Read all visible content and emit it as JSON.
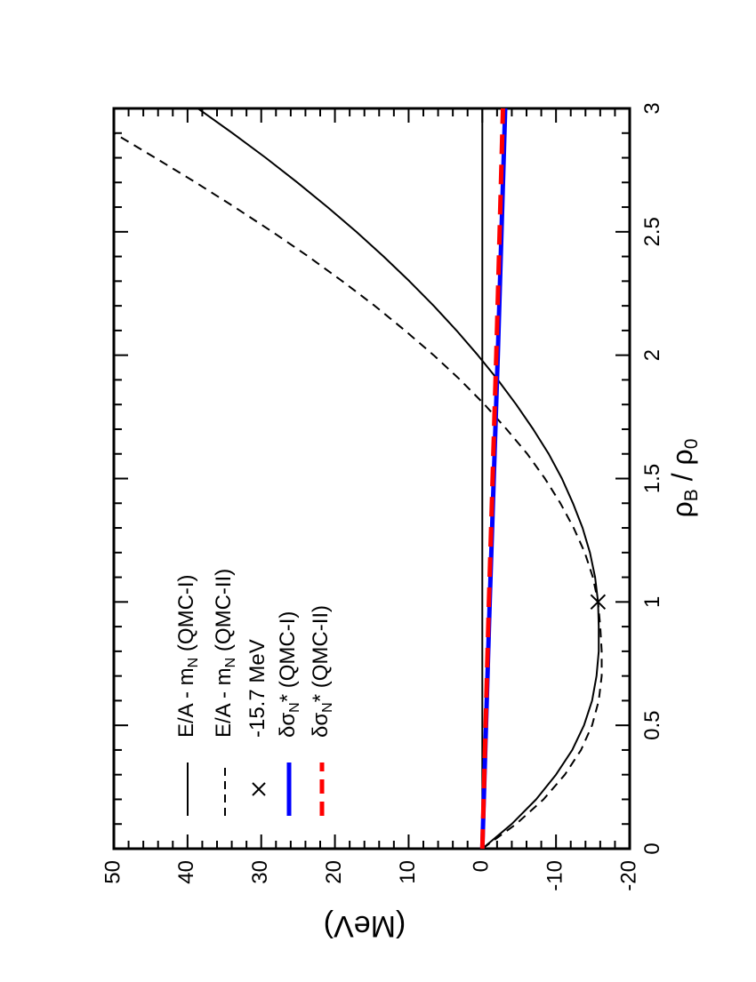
{
  "chart_data": {
    "type": "line",
    "xlabel": "ρB / ρ0",
    "xlabel_parts": {
      "rho": "ρ",
      "sub1": "B",
      "mid": " / ρ",
      "sub2": "0"
    },
    "ylabel": "(MeV)",
    "xlim": [
      0,
      3
    ],
    "ylim": [
      -20,
      50
    ],
    "x_ticks": [
      "0",
      "0.5",
      "1",
      "1.5",
      "2",
      "2.5",
      "3"
    ],
    "y_ticks": [
      "-20",
      "-10",
      "0",
      "10",
      "20",
      "30",
      "40",
      "50"
    ],
    "x_tick_values": [
      0,
      0.5,
      1,
      1.5,
      2,
      2.5,
      3
    ],
    "y_tick_values": [
      -20,
      -10,
      0,
      10,
      20,
      30,
      40,
      50
    ],
    "orientation": "rotated 90 degrees counter-clockwise",
    "zero_line": true,
    "legend_position": "top-left",
    "legend": [
      {
        "label": "E/A - m",
        "sub": "N",
        "suffix": " (QMC-I)",
        "style": "solid",
        "color": "#000000"
      },
      {
        "label": "E/A - m",
        "sub": "N",
        "suffix": " (QMC-II)",
        "style": "dashed",
        "color": "#000000"
      },
      {
        "label": "-15.7 MeV",
        "sub": "",
        "suffix": "",
        "style": "marker-x",
        "color": "#000000"
      },
      {
        "label": "δσ",
        "sub": "N",
        "suffix": "* (QMC-I)",
        "style": "solid-thick",
        "color": "#0000ff"
      },
      {
        "label": "δσ",
        "sub": "N",
        "suffix": "* (QMC-II)",
        "style": "dashed-thick",
        "color": "#ff0000"
      }
    ],
    "series": [
      {
        "name": "E/A - mN (QMC-I)",
        "style": "solid",
        "color": "#000000",
        "x": [
          0,
          0.1,
          0.2,
          0.3,
          0.4,
          0.5,
          0.6,
          0.7,
          0.8,
          0.9,
          1.0,
          1.1,
          1.2,
          1.3,
          1.4,
          1.5,
          1.6,
          1.7,
          1.8,
          1.9,
          2.0,
          2.1,
          2.2,
          2.3,
          2.4,
          2.5,
          2.6,
          2.7,
          2.8,
          2.9,
          3.0
        ],
        "y": [
          0,
          -4.0,
          -7.3,
          -10.0,
          -12.2,
          -13.8,
          -14.9,
          -15.5,
          -15.8,
          -15.8,
          -15.7,
          -15.3,
          -14.6,
          -13.6,
          -12.3,
          -10.8,
          -9.0,
          -6.9,
          -4.6,
          -2.1,
          0.6,
          3.5,
          6.6,
          9.9,
          13.4,
          17.1,
          21.0,
          25.1,
          29.4,
          33.9,
          38.6
        ]
      },
      {
        "name": "E/A - mN (QMC-II)",
        "style": "dashed",
        "color": "#000000",
        "x": [
          0,
          0.1,
          0.2,
          0.3,
          0.4,
          0.5,
          0.6,
          0.7,
          0.8,
          0.9,
          1.0,
          1.1,
          1.2,
          1.3,
          1.4,
          1.5,
          1.6,
          1.7,
          1.8,
          1.9,
          2.0,
          2.1,
          2.2,
          2.3,
          2.4,
          2.5,
          2.6,
          2.7,
          2.8,
          2.9,
          3.0
        ],
        "y": [
          0,
          -4.6,
          -8.3,
          -11.2,
          -13.4,
          -14.9,
          -15.8,
          -16.2,
          -16.2,
          -16.0,
          -15.7,
          -15.0,
          -13.9,
          -12.4,
          -10.6,
          -8.5,
          -6.1,
          -3.3,
          -0.3,
          3.0,
          6.6,
          10.5,
          14.6,
          19.0,
          23.6,
          28.5,
          33.6,
          38.9,
          44.4,
          50.0,
          50.0
        ]
      },
      {
        "name": "δσN* (QMC-I)",
        "style": "solid-thick",
        "color": "#0000ff",
        "x": [
          0,
          1.0,
          2.0,
          3.0
        ],
        "y": [
          0,
          -1.0,
          -2.1,
          -3.1
        ]
      },
      {
        "name": "δσN* (QMC-II)",
        "style": "dashed-thick",
        "color": "#ff0000",
        "x": [
          0,
          1.0,
          2.0,
          3.0
        ],
        "y": [
          0,
          -0.9,
          -1.9,
          -2.8
        ]
      }
    ],
    "markers": [
      {
        "name": "-15.7 MeV",
        "x": 1.0,
        "y": -15.7,
        "symbol": "x",
        "color": "#000000"
      }
    ]
  }
}
